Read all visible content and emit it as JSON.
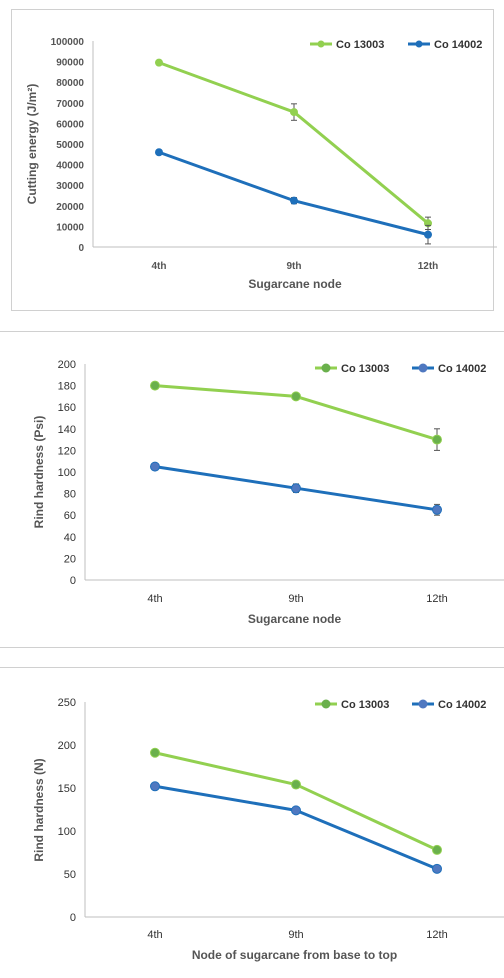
{
  "charts": [
    {
      "type": "line",
      "xlabel": "Sugarcane node",
      "ylabel": "Cutting energy (J/m²)",
      "categories": [
        "4th",
        "9th",
        "12th"
      ],
      "ylim": [
        0,
        100000
      ],
      "yticks": [
        "0",
        "10000",
        "20000",
        "30000",
        "40000",
        "50000",
        "60000",
        "70000",
        "80000",
        "90000",
        "100000"
      ],
      "legend_position": "top-right",
      "grid": false,
      "series": [
        {
          "name": "Co 13003",
          "color": "#92d050",
          "values": [
            89500,
            65500,
            11500
          ],
          "errors": [
            0,
            4000,
            3000
          ]
        },
        {
          "name": "Co 14002",
          "color": "#1e6fba",
          "values": [
            46000,
            22500,
            6000
          ],
          "errors": [
            0,
            1500,
            4500
          ]
        }
      ]
    },
    {
      "type": "line",
      "xlabel": "Sugarcane node",
      "ylabel": "Rind hardness (Psi)",
      "categories": [
        "4th",
        "9th",
        "12th"
      ],
      "ylim": [
        0,
        200
      ],
      "yticks": [
        "0",
        "20",
        "40",
        "60",
        "80",
        "100",
        "120",
        "140",
        "160",
        "180",
        "200"
      ],
      "legend_position": "top-right",
      "grid": false,
      "series": [
        {
          "name": "Co 13003",
          "color": "#92d050",
          "values": [
            180,
            170,
            130
          ],
          "errors": [
            0,
            0,
            10
          ]
        },
        {
          "name": "Co 14002",
          "color": "#1e6fba",
          "values": [
            105,
            85,
            65
          ],
          "errors": [
            0,
            4,
            5
          ]
        }
      ]
    },
    {
      "type": "line",
      "xlabel": "Node of sugarcane from base to top",
      "ylabel": "Rind hardness (N)",
      "categories": [
        "4th",
        "9th",
        "12th"
      ],
      "ylim": [
        0,
        250
      ],
      "yticks": [
        "0",
        "50",
        "100",
        "150",
        "200",
        "250"
      ],
      "legend_position": "top-right",
      "grid": false,
      "series": [
        {
          "name": "Co 13003",
          "color": "#92d050",
          "values": [
            191,
            154,
            78
          ],
          "errors": [
            0,
            0,
            0
          ]
        },
        {
          "name": "Co 14002",
          "color": "#1e6fba",
          "values": [
            152,
            124,
            56
          ],
          "errors": [
            0,
            0,
            0
          ]
        }
      ]
    }
  ]
}
